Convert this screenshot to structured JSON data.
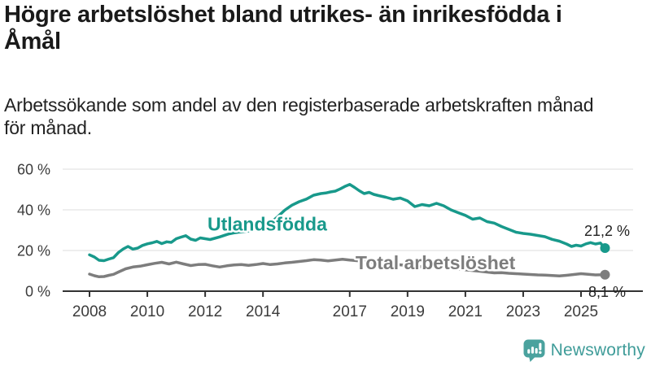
{
  "headline": "Högre arbetslöshet bland utrikes- än inrikesfödda i\nÅmål",
  "subtitle": "Arbetssökande som andel av den registerbaserade arbetskraften månad\nför månad.",
  "footer": {
    "brand": "Newsworthy",
    "brand_color": "#3f9c99",
    "logo_icon": "speech-bubble-bar-chart-icon",
    "logo_icon_color": "#4aa29e"
  },
  "chart_data": {
    "type": "line",
    "title": "Högre arbetslöshet bland utrikes- än inrikesfödda i Åmål",
    "subtitle": "Arbetssökande som andel av den registerbaserade arbetskraften månad för månad.",
    "unit": "percent",
    "xlabel": "",
    "ylabel": "",
    "grid": "horizontal",
    "grid_color": "#dcdcdc",
    "axis_color": "#333333",
    "tick_label_color": "#3c3c3c",
    "value_label_color": "#222222",
    "xlim": [
      2007.1,
      2026.9
    ],
    "ylim": [
      0,
      66
    ],
    "x_ticks": [
      2008,
      2010,
      2012,
      2014,
      2017,
      2019,
      2021,
      2023,
      2025
    ],
    "y_ticks": [
      {
        "value": 0,
        "label": "0 %"
      },
      {
        "value": 20,
        "label": "20 %"
      },
      {
        "value": 40,
        "label": "40 %"
      },
      {
        "value": 60,
        "label": "60 %"
      }
    ],
    "legend_position": "inline-labels",
    "series": [
      {
        "name": "Utlandsfödda",
        "color": "#18998b",
        "line_width": 3.5,
        "end_dot": true,
        "label_pos": {
          "x": 2012.08,
          "y": 29.8,
          "anchor": "start"
        },
        "end_label": {
          "text": "21,2 %",
          "x": 2025.9,
          "y": 27.2,
          "anchor": "middle"
        },
        "points": [
          [
            2008.0,
            17.9
          ],
          [
            2008.17,
            16.8
          ],
          [
            2008.33,
            15.2
          ],
          [
            2008.5,
            15.0
          ],
          [
            2008.67,
            15.8
          ],
          [
            2008.83,
            16.5
          ],
          [
            2009.0,
            19.0
          ],
          [
            2009.17,
            20.8
          ],
          [
            2009.33,
            22.0
          ],
          [
            2009.5,
            20.7
          ],
          [
            2009.67,
            21.2
          ],
          [
            2009.83,
            22.5
          ],
          [
            2010.0,
            23.3
          ],
          [
            2010.17,
            23.8
          ],
          [
            2010.33,
            24.5
          ],
          [
            2010.5,
            23.4
          ],
          [
            2010.67,
            24.3
          ],
          [
            2010.83,
            24.0
          ],
          [
            2011.0,
            25.8
          ],
          [
            2011.17,
            26.6
          ],
          [
            2011.33,
            27.3
          ],
          [
            2011.5,
            25.6
          ],
          [
            2011.67,
            25.0
          ],
          [
            2011.83,
            26.2
          ],
          [
            2012.0,
            25.8
          ],
          [
            2012.17,
            25.4
          ],
          [
            2012.33,
            26.0
          ],
          [
            2012.5,
            26.7
          ],
          [
            2012.67,
            27.5
          ],
          [
            2012.83,
            28.2
          ],
          [
            2013.0,
            28.7
          ],
          [
            2013.25,
            29.2
          ],
          [
            2013.5,
            29.6
          ],
          [
            2013.75,
            30.3
          ],
          [
            2014.0,
            31.2
          ],
          [
            2014.25,
            33.5
          ],
          [
            2014.5,
            36.5
          ],
          [
            2014.75,
            39.8
          ],
          [
            2015.0,
            42.3
          ],
          [
            2015.25,
            44.0
          ],
          [
            2015.5,
            45.3
          ],
          [
            2015.75,
            47.2
          ],
          [
            2016.0,
            48.0
          ],
          [
            2016.17,
            48.3
          ],
          [
            2016.33,
            48.8
          ],
          [
            2016.5,
            49.2
          ],
          [
            2016.67,
            50.3
          ],
          [
            2016.83,
            51.5
          ],
          [
            2017.0,
            52.5
          ],
          [
            2017.17,
            51.0
          ],
          [
            2017.33,
            49.4
          ],
          [
            2017.5,
            48.0
          ],
          [
            2017.67,
            48.6
          ],
          [
            2017.83,
            47.6
          ],
          [
            2018.0,
            47.0
          ],
          [
            2018.25,
            46.2
          ],
          [
            2018.5,
            45.2
          ],
          [
            2018.75,
            45.8
          ],
          [
            2019.0,
            44.4
          ],
          [
            2019.25,
            41.6
          ],
          [
            2019.5,
            42.6
          ],
          [
            2019.75,
            42.0
          ],
          [
            2020.0,
            43.2
          ],
          [
            2020.25,
            42.0
          ],
          [
            2020.5,
            40.0
          ],
          [
            2020.75,
            38.6
          ],
          [
            2021.0,
            37.3
          ],
          [
            2021.25,
            35.4
          ],
          [
            2021.5,
            36.0
          ],
          [
            2021.75,
            34.2
          ],
          [
            2022.0,
            33.5
          ],
          [
            2022.25,
            31.8
          ],
          [
            2022.5,
            30.4
          ],
          [
            2022.75,
            29.0
          ],
          [
            2023.0,
            28.4
          ],
          [
            2023.25,
            28.0
          ],
          [
            2023.5,
            27.4
          ],
          [
            2023.75,
            26.8
          ],
          [
            2024.0,
            25.5
          ],
          [
            2024.25,
            24.6
          ],
          [
            2024.5,
            23.2
          ],
          [
            2024.67,
            22.0
          ],
          [
            2024.83,
            22.6
          ],
          [
            2025.0,
            22.2
          ],
          [
            2025.17,
            23.3
          ],
          [
            2025.33,
            23.9
          ],
          [
            2025.5,
            23.2
          ],
          [
            2025.67,
            23.7
          ],
          [
            2025.83,
            21.2
          ]
        ]
      },
      {
        "name": "Total arbetslöshet",
        "color": "#7d7d7d",
        "line_width": 3.5,
        "end_dot": true,
        "label_pos": {
          "x": 2017.2,
          "y": 10.8,
          "anchor": "start"
        },
        "end_label": {
          "text": "8,1 %",
          "x": 2025.9,
          "y": -2.8,
          "anchor": "middle"
        },
        "points": [
          [
            2008.0,
            8.4
          ],
          [
            2008.17,
            7.6
          ],
          [
            2008.33,
            7.1
          ],
          [
            2008.5,
            7.2
          ],
          [
            2008.67,
            7.8
          ],
          [
            2008.83,
            8.3
          ],
          [
            2009.0,
            9.4
          ],
          [
            2009.25,
            11.0
          ],
          [
            2009.5,
            11.9
          ],
          [
            2009.75,
            12.3
          ],
          [
            2010.0,
            13.0
          ],
          [
            2010.25,
            13.7
          ],
          [
            2010.5,
            14.2
          ],
          [
            2010.75,
            13.4
          ],
          [
            2011.0,
            14.3
          ],
          [
            2011.25,
            13.4
          ],
          [
            2011.5,
            12.6
          ],
          [
            2011.75,
            13.1
          ],
          [
            2012.0,
            13.2
          ],
          [
            2012.25,
            12.5
          ],
          [
            2012.5,
            11.9
          ],
          [
            2012.75,
            12.5
          ],
          [
            2013.0,
            12.9
          ],
          [
            2013.25,
            13.1
          ],
          [
            2013.5,
            12.7
          ],
          [
            2013.75,
            13.1
          ],
          [
            2014.0,
            13.6
          ],
          [
            2014.25,
            13.1
          ],
          [
            2014.5,
            13.4
          ],
          [
            2014.75,
            13.9
          ],
          [
            2015.0,
            14.2
          ],
          [
            2015.25,
            14.6
          ],
          [
            2015.5,
            15.0
          ],
          [
            2015.75,
            15.5
          ],
          [
            2016.0,
            15.3
          ],
          [
            2016.25,
            14.9
          ],
          [
            2016.5,
            15.3
          ],
          [
            2016.75,
            15.7
          ],
          [
            2017.0,
            15.3
          ],
          [
            2017.5,
            14.7
          ],
          [
            2018.0,
            14.0
          ],
          [
            2018.5,
            13.3
          ],
          [
            2019.0,
            12.6
          ],
          [
            2019.5,
            12.0
          ],
          [
            2020.0,
            12.2
          ],
          [
            2020.5,
            11.4
          ],
          [
            2021.0,
            10.5
          ],
          [
            2021.5,
            9.8
          ],
          [
            2021.75,
            9.4
          ],
          [
            2022.0,
            9.0
          ],
          [
            2022.25,
            9.1
          ],
          [
            2022.5,
            8.8
          ],
          [
            2022.75,
            8.6
          ],
          [
            2023.0,
            8.4
          ],
          [
            2023.25,
            8.2
          ],
          [
            2023.5,
            8.0
          ],
          [
            2023.75,
            7.9
          ],
          [
            2024.0,
            7.7
          ],
          [
            2024.25,
            7.5
          ],
          [
            2024.5,
            7.8
          ],
          [
            2024.75,
            8.2
          ],
          [
            2025.0,
            8.6
          ],
          [
            2025.25,
            8.3
          ],
          [
            2025.5,
            8.0
          ],
          [
            2025.83,
            8.1
          ]
        ]
      }
    ]
  }
}
